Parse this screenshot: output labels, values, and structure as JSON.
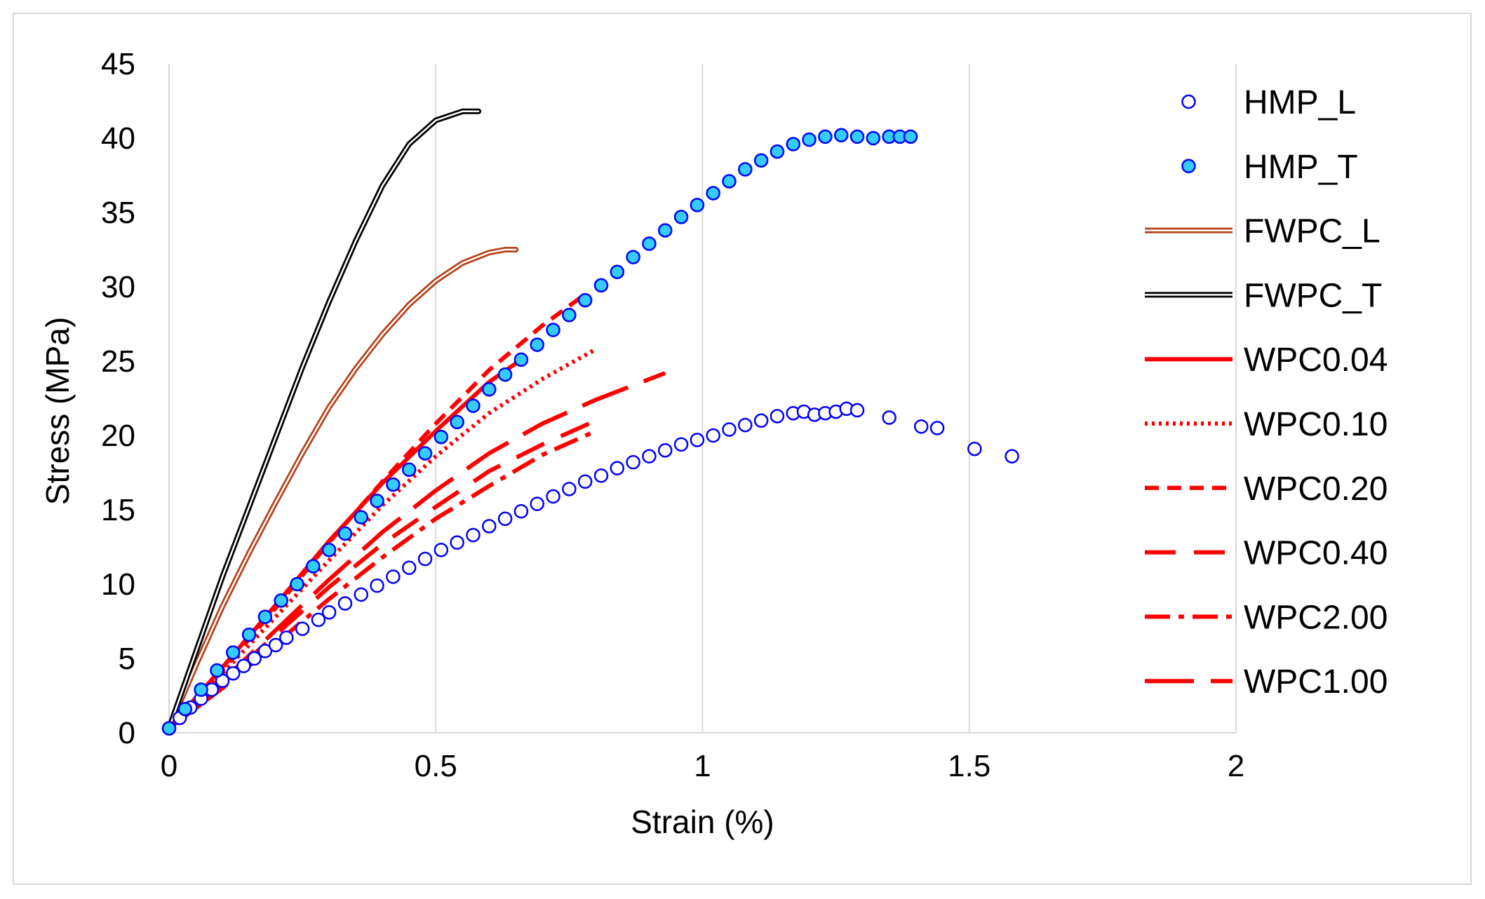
{
  "chart_data": {
    "type": "scatter",
    "title": "",
    "xlabel": "Strain (%)",
    "ylabel": "Stress (MPa)",
    "xlim": [
      0,
      2
    ],
    "ylim": [
      0,
      45
    ],
    "xticks": [
      "0",
      "0.5",
      "1",
      "1.5",
      "2"
    ],
    "yticks": [
      "0",
      "5",
      "10",
      "15",
      "20",
      "25",
      "30",
      "35",
      "40",
      "45"
    ],
    "xtick_values": [
      0,
      0.5,
      1,
      1.5,
      2
    ],
    "ytick_values": [
      0,
      5,
      10,
      15,
      20,
      25,
      30,
      35,
      40,
      45
    ],
    "grid": "vertical",
    "legend_position": "right",
    "series": [
      {
        "name": "HMP_L",
        "style": "hollow-circle",
        "color": "#0000ff",
        "fill": "#ffffff",
        "x": [
          0.0,
          0.02,
          0.04,
          0.06,
          0.08,
          0.1,
          0.12,
          0.14,
          0.16,
          0.18,
          0.2,
          0.22,
          0.25,
          0.28,
          0.3,
          0.33,
          0.36,
          0.39,
          0.42,
          0.45,
          0.48,
          0.51,
          0.54,
          0.57,
          0.6,
          0.63,
          0.66,
          0.69,
          0.72,
          0.75,
          0.78,
          0.81,
          0.84,
          0.87,
          0.9,
          0.93,
          0.96,
          0.99,
          1.02,
          1.05,
          1.08,
          1.11,
          1.14,
          1.17,
          1.19,
          1.21,
          1.23,
          1.25,
          1.27,
          1.29,
          1.35,
          1.41,
          1.44,
          1.51,
          1.58
        ],
        "y": [
          0.3,
          1.0,
          1.7,
          2.3,
          2.9,
          3.5,
          4.0,
          4.5,
          5.0,
          5.5,
          5.9,
          6.4,
          7.0,
          7.6,
          8.1,
          8.7,
          9.3,
          9.9,
          10.5,
          11.1,
          11.7,
          12.3,
          12.8,
          13.3,
          13.9,
          14.4,
          14.9,
          15.4,
          15.9,
          16.4,
          16.9,
          17.3,
          17.8,
          18.2,
          18.6,
          19.0,
          19.4,
          19.7,
          20.0,
          20.4,
          20.7,
          21.0,
          21.3,
          21.5,
          21.6,
          21.4,
          21.5,
          21.6,
          21.8,
          21.7,
          21.2,
          20.6,
          20.5,
          19.1,
          18.6
        ]
      },
      {
        "name": "HMP_T",
        "style": "filled-circle",
        "color": "#0000ff",
        "fill": "#33ccff",
        "x": [
          0.0,
          0.03,
          0.06,
          0.09,
          0.12,
          0.15,
          0.18,
          0.21,
          0.24,
          0.27,
          0.3,
          0.33,
          0.36,
          0.39,
          0.42,
          0.45,
          0.48,
          0.51,
          0.54,
          0.57,
          0.6,
          0.63,
          0.66,
          0.69,
          0.72,
          0.75,
          0.78,
          0.81,
          0.84,
          0.87,
          0.9,
          0.93,
          0.96,
          0.99,
          1.02,
          1.05,
          1.08,
          1.11,
          1.14,
          1.17,
          1.2,
          1.23,
          1.26,
          1.29,
          1.32,
          1.35,
          1.37,
          1.39
        ],
        "y": [
          0.3,
          1.6,
          2.9,
          4.2,
          5.4,
          6.6,
          7.8,
          8.9,
          10.0,
          11.2,
          12.3,
          13.4,
          14.5,
          15.6,
          16.7,
          17.7,
          18.8,
          19.9,
          20.9,
          22.0,
          23.1,
          24.1,
          25.1,
          26.1,
          27.1,
          28.1,
          29.1,
          30.1,
          31.0,
          32.0,
          32.9,
          33.8,
          34.7,
          35.5,
          36.3,
          37.1,
          37.9,
          38.5,
          39.1,
          39.6,
          39.9,
          40.1,
          40.2,
          40.1,
          40.0,
          40.1,
          40.1,
          40.1
        ]
      },
      {
        "name": "FWPC_L",
        "style": "double-line",
        "color": "#b5421a",
        "x": [
          0.0,
          0.05,
          0.1,
          0.15,
          0.2,
          0.25,
          0.3,
          0.35,
          0.4,
          0.45,
          0.5,
          0.55,
          0.6,
          0.63,
          0.65
        ],
        "y": [
          0.3,
          4.5,
          8.5,
          12.1,
          15.5,
          18.8,
          21.9,
          24.5,
          26.8,
          28.8,
          30.4,
          31.6,
          32.3,
          32.5,
          32.5
        ]
      },
      {
        "name": "FWPC_T",
        "style": "double-line",
        "color": "#000000",
        "x": [
          0.0,
          0.05,
          0.1,
          0.15,
          0.2,
          0.25,
          0.3,
          0.35,
          0.4,
          0.45,
          0.5,
          0.55,
          0.58
        ],
        "y": [
          0.3,
          5.4,
          10.5,
          15.2,
          19.9,
          24.6,
          29.0,
          33.1,
          36.8,
          39.6,
          41.2,
          41.8,
          41.8
        ]
      },
      {
        "name": "WPC0.04",
        "style": "solid",
        "color": "#ff0000",
        "x": [
          0.0,
          0.1,
          0.2,
          0.3,
          0.4,
          0.5,
          0.6,
          0.66
        ],
        "y": [
          0.3,
          4.4,
          8.6,
          12.9,
          16.8,
          20.3,
          23.6,
          25.1
        ]
      },
      {
        "name": "WPC0.10",
        "style": "dotted",
        "color": "#ff0000",
        "x": [
          0.0,
          0.1,
          0.2,
          0.3,
          0.4,
          0.5,
          0.6,
          0.7,
          0.8
        ],
        "y": [
          0.3,
          4.0,
          7.8,
          11.6,
          15.3,
          18.6,
          21.5,
          23.8,
          25.8
        ]
      },
      {
        "name": "WPC0.20",
        "style": "short-dash",
        "color": "#ff0000",
        "x": [
          0.0,
          0.1,
          0.2,
          0.3,
          0.4,
          0.5,
          0.6,
          0.7,
          0.78
        ],
        "y": [
          0.3,
          4.2,
          8.4,
          12.8,
          16.9,
          20.8,
          24.4,
          27.4,
          29.5
        ]
      },
      {
        "name": "WPC0.40",
        "style": "long-dash",
        "color": "#ff0000",
        "x": [
          0.0,
          0.1,
          0.2,
          0.3,
          0.4,
          0.5,
          0.6,
          0.7,
          0.8
        ],
        "y": [
          0.3,
          3.4,
          6.6,
          9.8,
          12.7,
          15.2,
          17.6,
          19.4,
          21.0
        ]
      },
      {
        "name": "WPC2.00",
        "style": "dash-dot",
        "color": "#ff0000",
        "x": [
          0.0,
          0.1,
          0.2,
          0.3,
          0.4,
          0.5,
          0.6,
          0.7,
          0.8
        ],
        "y": [
          0.3,
          3.0,
          6.0,
          9.0,
          11.8,
          14.4,
          16.6,
          18.7,
          20.3
        ]
      },
      {
        "name": "WPC1.00",
        "style": "long-long-dash",
        "color": "#ff0000",
        "x": [
          0.0,
          0.1,
          0.2,
          0.3,
          0.4,
          0.5,
          0.6,
          0.7,
          0.8,
          0.93
        ],
        "y": [
          0.3,
          3.5,
          6.9,
          10.3,
          13.5,
          16.3,
          18.8,
          20.8,
          22.4,
          24.2
        ]
      }
    ]
  }
}
